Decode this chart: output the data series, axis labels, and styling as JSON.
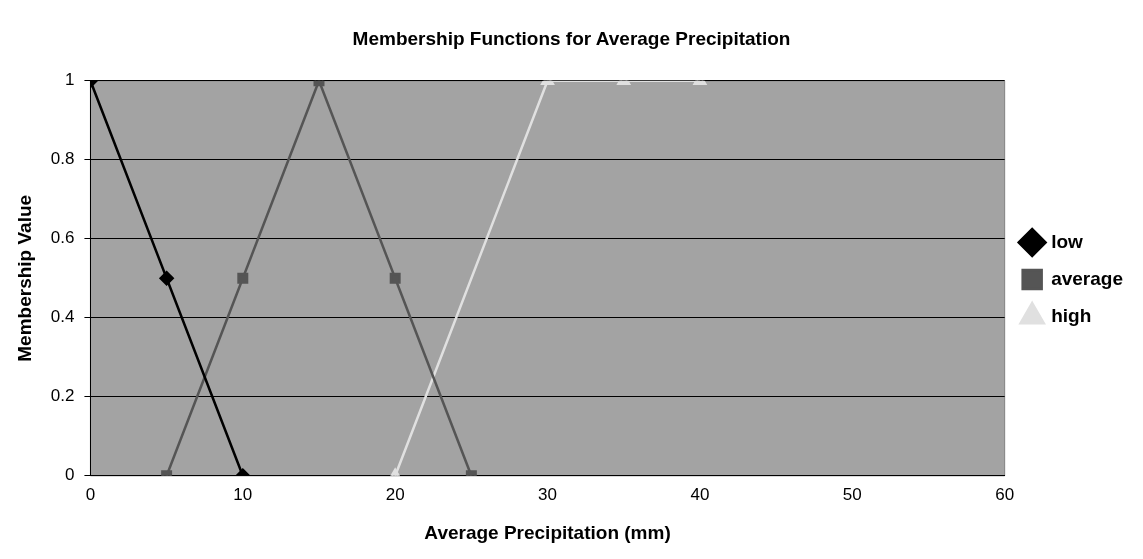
{
  "chart_data": {
    "type": "line",
    "title": "Membership Functions for Average Precipitation",
    "xlabel": "Average Precipitation (mm)",
    "ylabel": "Membership Value",
    "xlim": [
      0,
      60
    ],
    "xticks": [
      0,
      10,
      20,
      30,
      40,
      50,
      60
    ],
    "ylim": [
      0,
      1
    ],
    "yticks": [
      0,
      0.2,
      0.4,
      0.6,
      0.8,
      1
    ],
    "grid": "y",
    "legend": "right",
    "series": [
      {
        "name": "low",
        "color": "#000000",
        "marker": "diamond",
        "x": [
          0,
          5,
          10
        ],
        "values": [
          1,
          0.5,
          0
        ]
      },
      {
        "name": "average",
        "color": "#555555",
        "marker": "square",
        "x": [
          5,
          10,
          15,
          20,
          25
        ],
        "values": [
          0,
          0.5,
          1,
          0.5,
          0
        ]
      },
      {
        "name": "high",
        "color": "#e0e0e0",
        "marker": "triangle",
        "x": [
          20,
          30,
          35,
          40
        ],
        "values": [
          0,
          1,
          1,
          1
        ]
      }
    ]
  }
}
